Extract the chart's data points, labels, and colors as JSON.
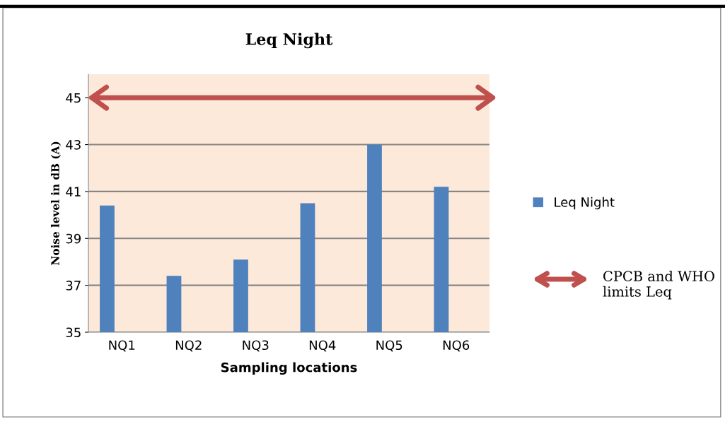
{
  "chart_data": {
    "type": "bar",
    "title": "Leq Night",
    "xlabel": "Sampling locations",
    "ylabel": "Noise level in dB (A)",
    "categories": [
      "NQ1",
      "NQ2",
      "NQ3",
      "NQ4",
      "NQ5",
      "NQ6"
    ],
    "series": [
      {
        "name": "Leq Night",
        "color": "#4f81bd",
        "values": [
          40.4,
          37.4,
          38.1,
          40.5,
          43.0,
          41.2
        ]
      }
    ],
    "ylim": [
      35,
      46
    ],
    "yticks": [
      35,
      37,
      39,
      41,
      43,
      45
    ],
    "grid": "y",
    "legend": "right",
    "ref_lines": [
      {
        "axis": "y",
        "value": 45,
        "label": "CPCB and WHO limits Leq",
        "color": "#c0504d"
      }
    ]
  }
}
